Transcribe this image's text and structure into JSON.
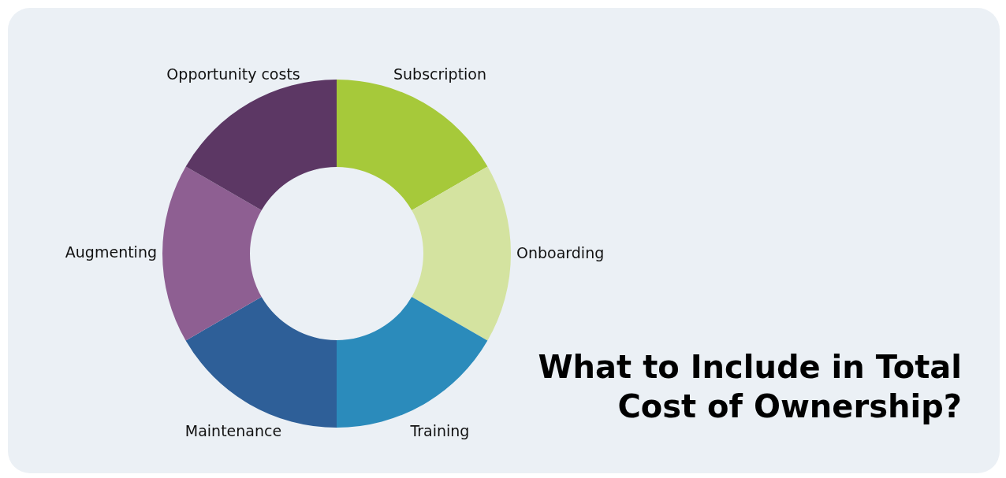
{
  "chart_data": {
    "type": "donut",
    "title": "What to Include in Total Cost of Ownership?",
    "categories": [
      "Subscription",
      "Onboarding",
      "Training",
      "Maintenance",
      "Augmenting",
      "Opportunity costs"
    ],
    "values": [
      16.67,
      16.67,
      16.66,
      16.67,
      16.67,
      16.66
    ],
    "colors": [
      "#a6c93a",
      "#d4e3a0",
      "#2b8bbb",
      "#2e5f98",
      "#8e5f92",
      "#5c3764"
    ]
  }
}
